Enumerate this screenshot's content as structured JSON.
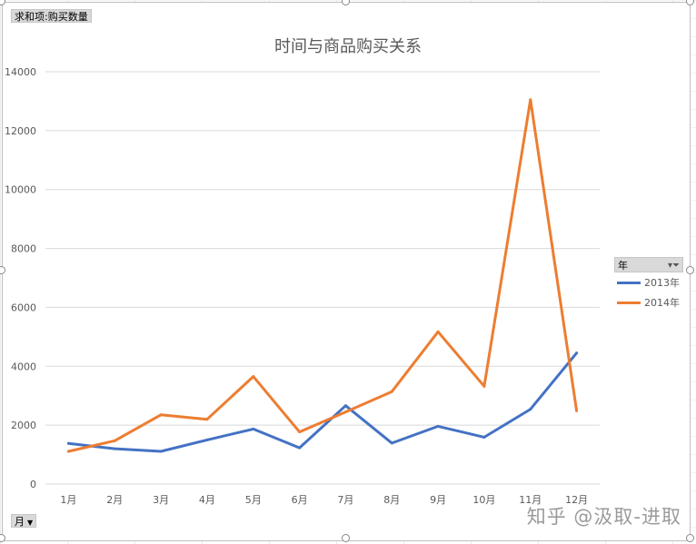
{
  "fields": {
    "value_field": "求和项:购买数量",
    "axis_field": "月",
    "legend_field": "年"
  },
  "watermark": "知乎 @汲取-进取",
  "chart_data": {
    "type": "line",
    "title": "时间与商品购买关系",
    "xlabel": "",
    "ylabel": "",
    "categories": [
      "1月",
      "2月",
      "3月",
      "4月",
      "5月",
      "6月",
      "7月",
      "8月",
      "9月",
      "10月",
      "11月",
      "12月"
    ],
    "series": [
      {
        "name": "2013年",
        "color": "#4472C4",
        "values": [
          1380,
          1200,
          1110,
          1500,
          1870,
          1230,
          2660,
          1390,
          1960,
          1590,
          2540,
          4450
        ]
      },
      {
        "name": "2014年",
        "color": "#ED7D31",
        "values": [
          1110,
          1470,
          2350,
          2200,
          3650,
          1770,
          2450,
          3140,
          5170,
          3320,
          13050,
          2490
        ]
      }
    ],
    "yticks": [
      "0",
      "2000",
      "4000",
      "6000",
      "8000",
      "10000",
      "12000",
      "14000"
    ],
    "ylim": [
      0,
      14000
    ],
    "grid": true,
    "legend": "right"
  }
}
